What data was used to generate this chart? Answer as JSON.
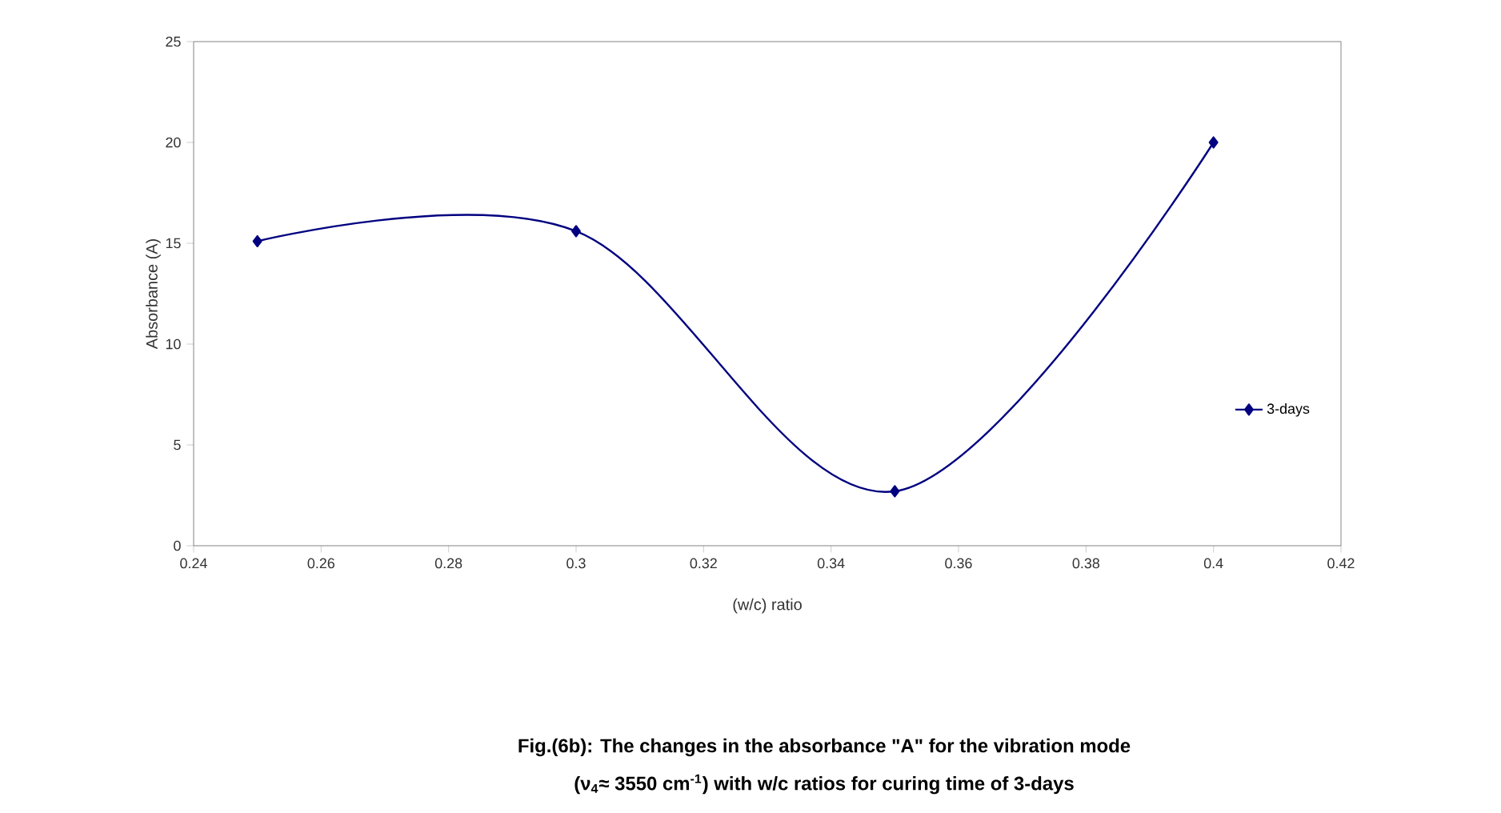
{
  "chart_data": {
    "type": "line",
    "xlabel": "(w/c) ratio",
    "ylabel": "Absorbance (A)",
    "x": [
      0.25,
      0.3,
      0.35,
      0.4
    ],
    "series": [
      {
        "name": "3-days",
        "color": "#000080",
        "values": [
          15.1,
          15.6,
          2.7,
          20.0
        ]
      }
    ],
    "xlim": [
      0.24,
      0.42
    ],
    "xticks": [
      0.24,
      0.26,
      0.28,
      0.3,
      0.32,
      0.34,
      0.36,
      0.38,
      0.4,
      0.42
    ],
    "ylim": [
      0,
      25
    ],
    "yticks": [
      0,
      5,
      10,
      15,
      20,
      25
    ],
    "grid": false,
    "legend": "right",
    "marker": "diamond",
    "line_style": "solid",
    "annotations": [
      "Fig.(6b): The changes in the absorbance \"A\" for the vibration mode",
      "(ν$_{4}$≈ 3550 cm$^{-1}$) with w/c ratios for curing time of 3-days"
    ]
  }
}
